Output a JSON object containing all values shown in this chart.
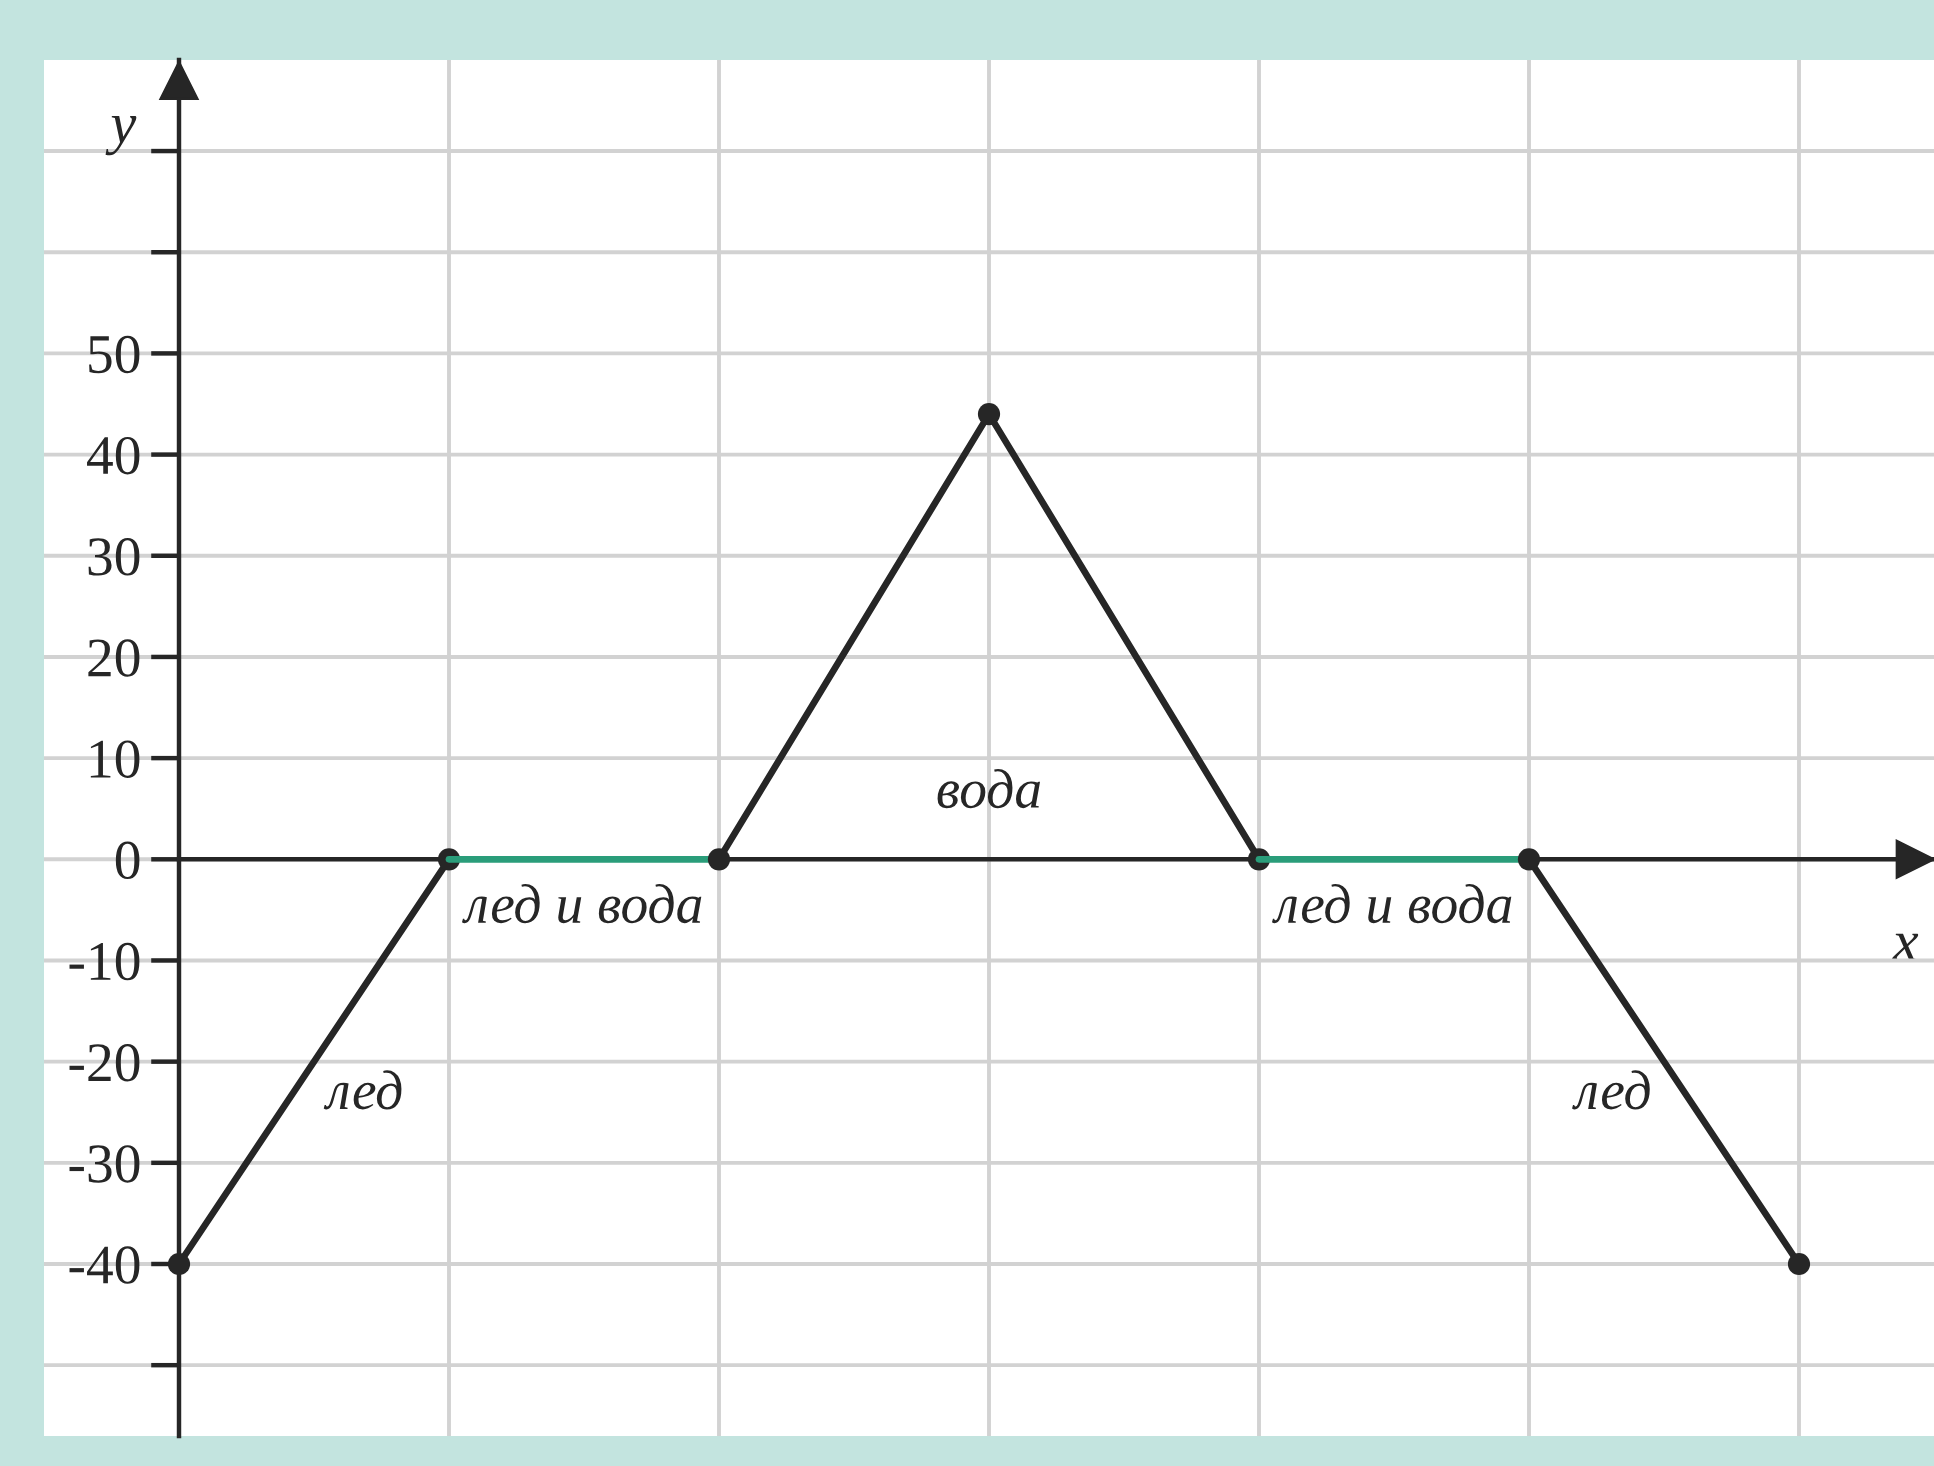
{
  "chart_data": {
    "type": "line",
    "xlabel": "x",
    "ylabel": "y",
    "categories": [
      null,
      null,
      null,
      null,
      null,
      null,
      null
    ],
    "series": [
      {
        "name": "лед",
        "color": "#262626",
        "values": [
          -40,
          0,
          null,
          null,
          null,
          null,
          null
        ]
      },
      {
        "name": "лед и вода",
        "color": "#2a9d7a",
        "values": [
          null,
          0,
          0,
          null,
          null,
          null,
          null
        ],
        "marker": "none"
      },
      {
        "name": "вода",
        "color": "#262626",
        "values": [
          null,
          null,
          0,
          44,
          0,
          null,
          null
        ]
      },
      {
        "name": "лед и вода",
        "color": "#2a9d7a",
        "values": [
          null,
          null,
          null,
          null,
          0,
          0,
          null
        ],
        "marker": "none"
      },
      {
        "name": "лед",
        "color": "#262626",
        "values": [
          null,
          null,
          null,
          null,
          null,
          0,
          -40
        ]
      }
    ],
    "marker": "circle",
    "line_style": "solid",
    "ylim": [
      -57,
      79
    ],
    "yticks": [
      {
        "value": 70,
        "label": null
      },
      {
        "value": 60,
        "label": null
      },
      50,
      40,
      30,
      20,
      10,
      0,
      -10,
      -20,
      -30,
      -40,
      {
        "value": -50,
        "label": null
      }
    ],
    "tick_labels": "y",
    "grid": true
  }
}
